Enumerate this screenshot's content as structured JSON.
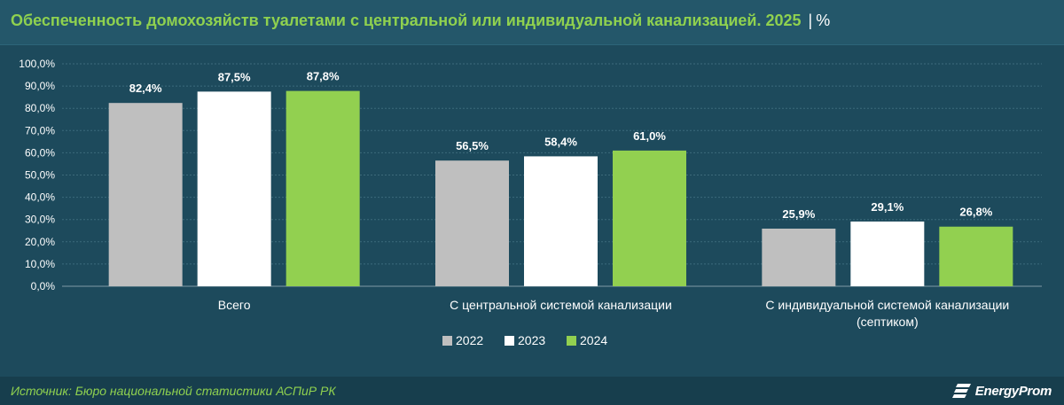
{
  "header": {
    "title": "Обеспеченность домохозяйств туалетами с центральной или индивидуальной канализацией. 2025",
    "separator": "|",
    "unit": "%"
  },
  "chart_data": {
    "type": "bar",
    "categories": [
      [
        "Всего"
      ],
      [
        "С центральной системой канализации"
      ],
      [
        "С индивидуальной системой канализации",
        "(септиком)"
      ]
    ],
    "series": [
      {
        "name": "2022",
        "values": [
          82.4,
          56.5,
          25.9
        ],
        "color": "#bfbfbf"
      },
      {
        "name": "2023",
        "values": [
          87.5,
          58.4,
          29.1
        ],
        "color": "#ffffff"
      },
      {
        "name": "2024",
        "values": [
          87.8,
          61.0,
          26.8
        ],
        "color": "#92d050"
      }
    ],
    "value_labels": [
      [
        "82,4%",
        "56,5%",
        "25,9%"
      ],
      [
        "87,5%",
        "58,4%",
        "29,1%"
      ],
      [
        "87,8%",
        "61,0%",
        "26,8%"
      ]
    ],
    "y_ticks": [
      "0,0%",
      "10,0%",
      "20,0%",
      "30,0%",
      "40,0%",
      "50,0%",
      "60,0%",
      "70,0%",
      "80,0%",
      "90,0%",
      "100,0%"
    ],
    "ylim": [
      0,
      100
    ],
    "grid": true,
    "legend_position": "bottom"
  },
  "footer": {
    "source": "Источник: Бюро национальной статистики АСПиР РК",
    "logo_text": "EnergyProm",
    "logo_icon": "energyprom-logo-icon"
  }
}
